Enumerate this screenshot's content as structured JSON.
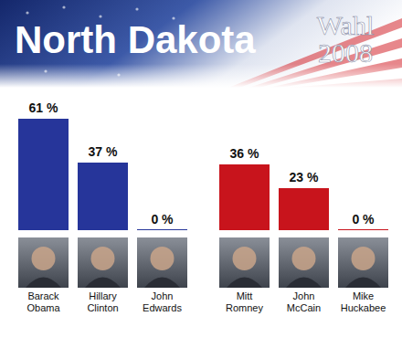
{
  "chart_data": [
    {
      "type": "bar",
      "title": "North Dakota",
      "subtitle": "Wahl 2008",
      "categories": [
        "Barack Obama",
        "Hillary Clinton",
        "John Edwards"
      ],
      "values": [
        61,
        37,
        0
      ],
      "value_labels": [
        "61 %",
        "37 %",
        "0 %"
      ],
      "color": "#26359a",
      "ylim": [
        0,
        61
      ],
      "tick_labels": false,
      "data_labels": true
    },
    {
      "type": "bar",
      "categories": [
        "Mitt Romney",
        "John McCain",
        "Mike Huckabee"
      ],
      "values": [
        36,
        23,
        0
      ],
      "value_labels": [
        "36 %",
        "23 %",
        "0 %"
      ],
      "color": "#c8141c",
      "ylim": [
        0,
        61
      ],
      "tick_labels": false,
      "data_labels": true
    }
  ]
}
